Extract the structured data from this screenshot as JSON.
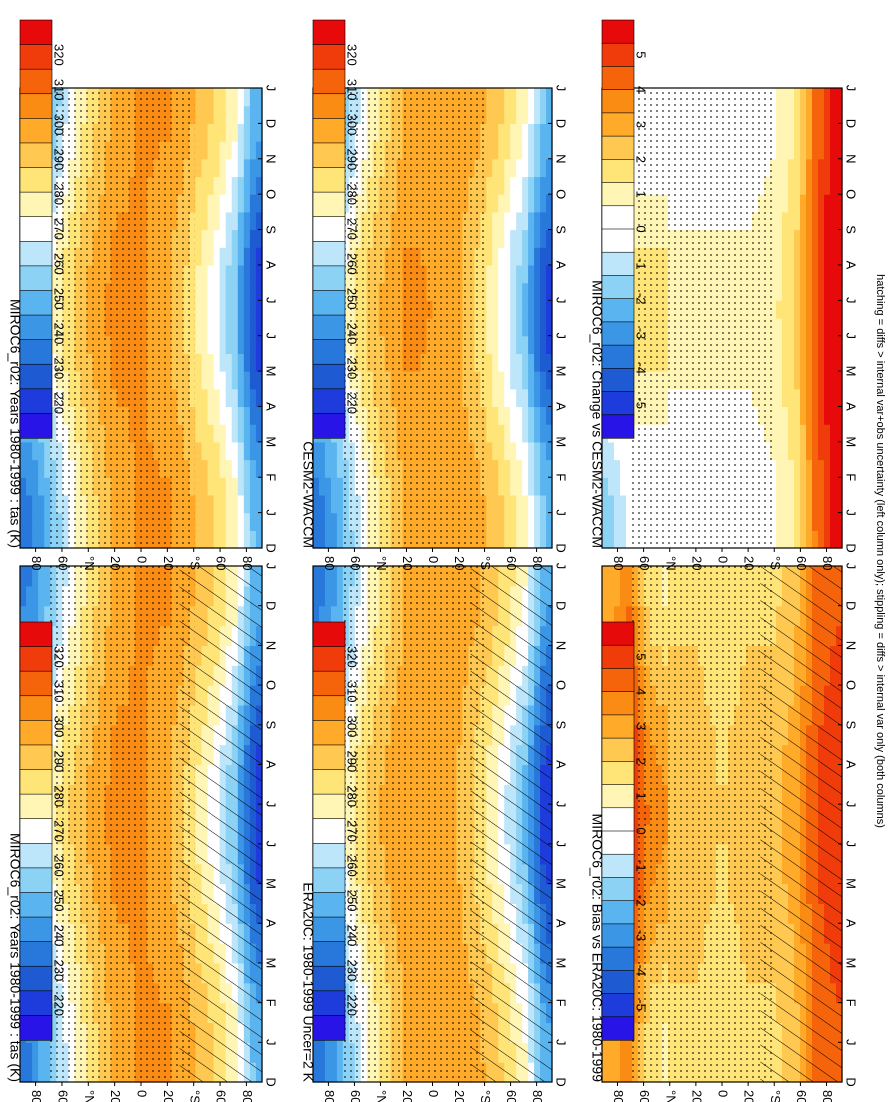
{
  "footnote": "hatching = diffs > internal var+obs uncertainty (left column only); stippling = diffs > internal var only (both columns)",
  "abs_colorbar": {
    "levels": [
      "320",
      "310",
      "300",
      "290",
      "280",
      "270",
      "260",
      "250",
      "240",
      "230",
      "220"
    ],
    "colors": [
      "#e60a0a",
      "#f03c0a",
      "#f5640a",
      "#fa8c14",
      "#ffaa28",
      "#ffc850",
      "#ffe478",
      "#fff5b4",
      "#ffffff",
      "#bee6fa",
      "#8cd2f5",
      "#5ab4f0",
      "#3c96e6",
      "#2878dc",
      "#1e5ad2",
      "#1e3cdc",
      "#2814e6"
    ]
  },
  "diff_colorbar": {
    "levels": [
      "5",
      "4",
      "3",
      "2",
      "1",
      "0",
      "-1",
      "-2",
      "-3",
      "-4",
      "-5"
    ],
    "colors": [
      "#e60a0a",
      "#f03c0a",
      "#f5640a",
      "#fa8c14",
      "#ffaa28",
      "#ffc850",
      "#ffe478",
      "#fff5b4",
      "#ffffff",
      "#ffffff",
      "#bee6fa",
      "#8cd2f5",
      "#5ab4f0",
      "#3c96e6",
      "#2878dc",
      "#1e5ad2",
      "#1e3cdc",
      "#2814e6"
    ]
  },
  "chart_data": [
    {
      "type": "heatmap",
      "title": "MIROC6_r02: Years 1980-1999 : tas (K)",
      "x": [
        "D",
        "J",
        "F",
        "M",
        "A",
        "M",
        "J",
        "J",
        "A",
        "S",
        "O",
        "N",
        "D",
        "J"
      ],
      "y": [
        "80",
        "60",
        "°N",
        "20",
        "0",
        "20",
        "°S",
        "60",
        "80"
      ],
      "ylim": [
        -90,
        90
      ],
      "colorbar": "abs",
      "hatching": true,
      "stippling": true,
      "zonal_profile_K": {
        "lat": [
          85,
          70,
          55,
          40,
          20,
          0,
          -20,
          -40,
          -55,
          -70,
          -85
        ],
        "value": [
          252,
          262,
          276,
          287,
          298,
          300,
          297,
          287,
          278,
          265,
          238
        ]
      }
    },
    {
      "type": "heatmap",
      "title": "MIROC6_r02: Years 1980-1999 : tas (K)",
      "x": [
        "D",
        "J",
        "F",
        "M",
        "A",
        "M",
        "J",
        "J",
        "A",
        "S",
        "O",
        "N",
        "D",
        "J"
      ],
      "y": [
        "80",
        "60",
        "°N",
        "20",
        "0",
        "20",
        "°S",
        "60",
        "80"
      ],
      "ylim": [
        -90,
        90
      ],
      "colorbar": "abs",
      "hatching": false,
      "stippling": true,
      "zonal_profile_K": {
        "lat": [
          85,
          70,
          55,
          40,
          20,
          0,
          -20,
          -40,
          -55,
          -70,
          -85
        ],
        "value": [
          250,
          260,
          275,
          287,
          298,
          300,
          297,
          287,
          278,
          265,
          238
        ]
      }
    },
    {
      "type": "heatmap",
      "title": "ERA20C: 1980-1999 Uncer=2 K",
      "x": [
        "D",
        "J",
        "F",
        "M",
        "A",
        "M",
        "J",
        "J",
        "A",
        "S",
        "O",
        "N",
        "D",
        "J"
      ],
      "y": [
        "80",
        "60",
        "°N",
        "20",
        "0",
        "20",
        "°S",
        "60",
        "80"
      ],
      "ylim": [
        -90,
        90
      ],
      "colorbar": "abs",
      "hatching": true,
      "stippling": true,
      "zonal_profile_K": {
        "lat": [
          85,
          70,
          55,
          40,
          20,
          0,
          -20,
          -40,
          -55,
          -70,
          -85
        ],
        "value": [
          250,
          260,
          275,
          286,
          296,
          298,
          295,
          286,
          276,
          263,
          236
        ]
      }
    },
    {
      "type": "heatmap",
      "title": "CESM2-WACCM",
      "x": [
        "D",
        "J",
        "F",
        "M",
        "A",
        "M",
        "J",
        "J",
        "A",
        "S",
        "O",
        "N",
        "D",
        "J"
      ],
      "y": [
        "80",
        "60",
        "°N",
        "20",
        "0",
        "20",
        "°S",
        "60",
        "80"
      ],
      "ylim": [
        -90,
        90
      ],
      "colorbar": "abs",
      "hatching": false,
      "stippling": true,
      "zonal_profile_K": {
        "lat": [
          85,
          70,
          55,
          40,
          20,
          0,
          -20,
          -40,
          -55,
          -70,
          -85
        ],
        "value": [
          250,
          261,
          275,
          286,
          297,
          299,
          296,
          287,
          277,
          264,
          240
        ]
      }
    },
    {
      "type": "heatmap",
      "title": "MIROC6_r02: Bias vs ERA20C: 1980-1999",
      "x": [
        "D",
        "J",
        "F",
        "M",
        "A",
        "M",
        "J",
        "J",
        "A",
        "S",
        "O",
        "N",
        "D",
        "J"
      ],
      "y": [
        "80",
        "60",
        "°N",
        "20",
        "0",
        "20",
        "°S",
        "60",
        "80"
      ],
      "ylim": [
        -90,
        90
      ],
      "colorbar": "diff",
      "hatching": true,
      "stippling": true,
      "zonal_profile_K": {
        "lat": [
          85,
          70,
          55,
          40,
          20,
          0,
          -20,
          -40,
          -55,
          -70,
          -85
        ],
        "value": [
          3.5,
          4.5,
          2.5,
          2,
          2,
          1.5,
          2,
          2,
          2.5,
          4,
          4.5
        ]
      }
    },
    {
      "type": "heatmap",
      "title": "MIROC6_r02: Change vs CESM2-WACCM",
      "x": [
        "D",
        "J",
        "F",
        "M",
        "A",
        "M",
        "J",
        "J",
        "A",
        "S",
        "O",
        "N",
        "D",
        "J"
      ],
      "y": [
        "80",
        "60",
        "°N",
        "20",
        "0",
        "20",
        "°S",
        "60",
        "80"
      ],
      "ylim": [
        -90,
        90
      ],
      "colorbar": "diff",
      "hatching": false,
      "stippling": true,
      "zonal_profile_K": {
        "lat": [
          85,
          70,
          55,
          40,
          20,
          0,
          -20,
          -40,
          -55,
          -70,
          -85
        ],
        "value": [
          -0.5,
          0.5,
          0.5,
          0.5,
          0.5,
          0.5,
          0.5,
          0.8,
          1.5,
          4,
          5.5
        ]
      }
    }
  ]
}
